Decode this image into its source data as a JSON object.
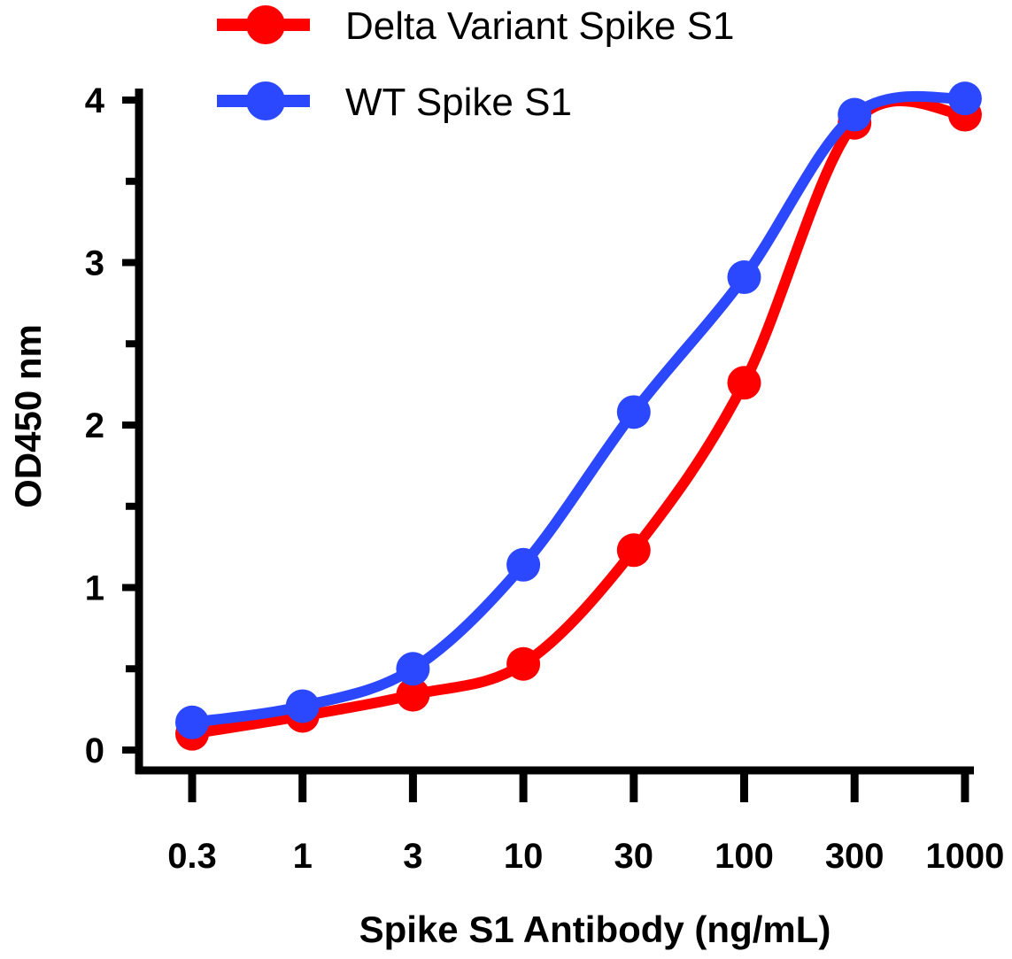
{
  "chart_data": {
    "type": "line",
    "title": "",
    "xlabel": "Spike S1 Antibody (ng/mL)",
    "ylabel": "OD450 nm",
    "x_scale": "log (evenly spaced dilution ticks)",
    "categories": [
      "0.3",
      "1",
      "3",
      "10",
      "30",
      "100",
      "300",
      "1000"
    ],
    "x": [
      0.3,
      1,
      3,
      10,
      30,
      100,
      300,
      1000
    ],
    "yticks": [
      "0",
      "1",
      "2",
      "3",
      "4"
    ],
    "ylim": [
      0,
      4
    ],
    "grid": false,
    "legend_position": "top",
    "series": [
      {
        "name": "Delta Variant Spike S1",
        "color": "#ff0000",
        "values": [
          0.1,
          0.21,
          0.34,
          0.53,
          1.23,
          2.26,
          3.86,
          3.91
        ]
      },
      {
        "name": "WT Spike S1",
        "color": "#2b48ff",
        "values": [
          0.17,
          0.27,
          0.5,
          1.14,
          2.08,
          2.91,
          3.91,
          4.01
        ]
      }
    ]
  }
}
